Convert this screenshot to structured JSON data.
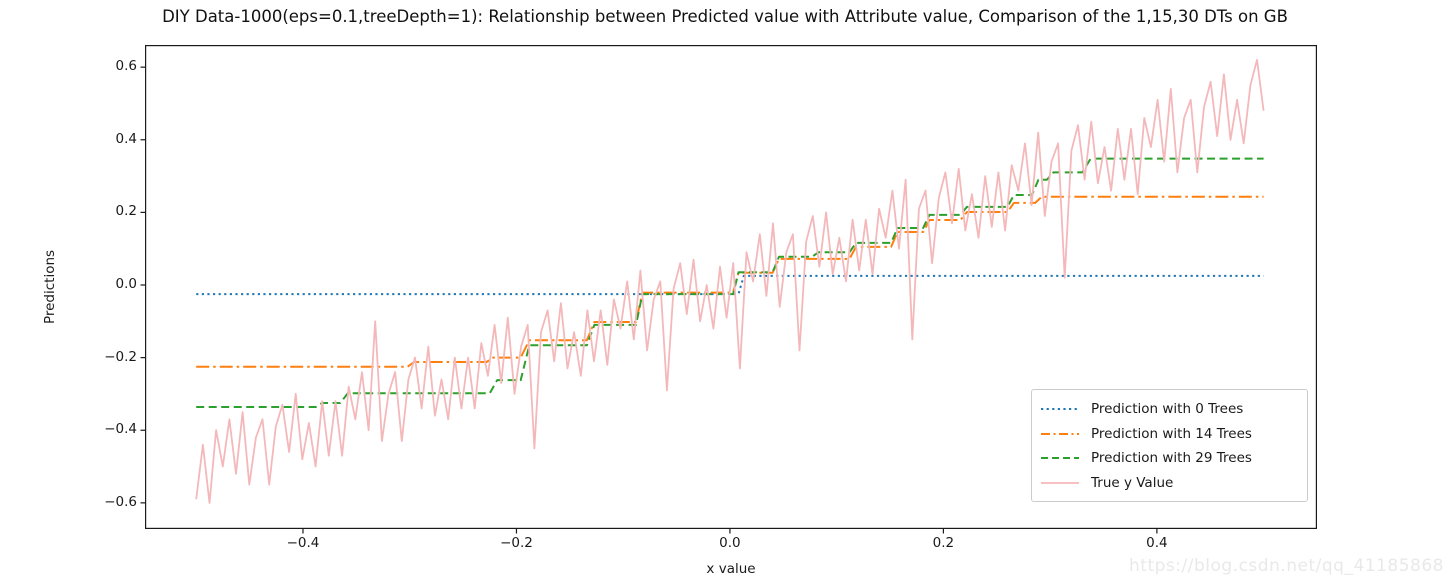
{
  "title": "DIY Data-1000(eps=0.1,treeDepth=1): Relationship between Predicted value with Attribute value, Comparison of the 1,15,30 DTs on GB",
  "watermark": "https://blog.csdn.net/qq_41185868",
  "chart_data": {
    "type": "line",
    "title": "DIY Data-1000(eps=0.1,treeDepth=1): Relationship between Predicted value with Attribute value, Comparison of the 1,15,30 DTs on GB",
    "xlabel": "x value",
    "ylabel": "Predictions",
    "xlim": [
      -0.548,
      0.55
    ],
    "ylim": [
      -0.672,
      0.661
    ],
    "grid": false,
    "legend_position": "inside-right-lower",
    "x_ticks": {
      "values": [
        -0.4,
        -0.2,
        0.0,
        0.2,
        0.4
      ],
      "labels": [
        "−0.4",
        "−0.2",
        "0.0",
        "0.2",
        "0.4"
      ]
    },
    "y_ticks": {
      "values": [
        0.6,
        0.4,
        0.2,
        0.0,
        -0.2,
        -0.4,
        -0.6
      ],
      "labels": [
        "0.6",
        "0.4",
        "0.2",
        "0.0",
        "−0.2",
        "−0.4",
        "−0.6"
      ]
    },
    "series": [
      {
        "name": "Prediction with 0 Trees",
        "color": "#1f77b4",
        "style": "dotted",
        "width": 2,
        "points": [
          [
            -0.5,
            -0.025
          ],
          [
            0.008,
            -0.025
          ],
          [
            0.013,
            0.025
          ],
          [
            0.5,
            0.025
          ]
        ]
      },
      {
        "name": "Prediction with 14 Trees",
        "color": "#ff7f0e",
        "style": "dashdot",
        "width": 2,
        "points": [
          [
            -0.5,
            -0.225
          ],
          [
            -0.302,
            -0.225
          ],
          [
            -0.296,
            -0.212
          ],
          [
            -0.228,
            -0.212
          ],
          [
            -0.222,
            -0.2
          ],
          [
            -0.196,
            -0.2
          ],
          [
            -0.188,
            -0.152
          ],
          [
            -0.134,
            -0.152
          ],
          [
            -0.127,
            -0.102
          ],
          [
            -0.088,
            -0.102
          ],
          [
            -0.082,
            -0.021
          ],
          [
            0.003,
            -0.021
          ],
          [
            0.008,
            0.034
          ],
          [
            0.04,
            0.034
          ],
          [
            0.046,
            0.072
          ],
          [
            0.112,
            0.072
          ],
          [
            0.118,
            0.105
          ],
          [
            0.151,
            0.105
          ],
          [
            0.157,
            0.146
          ],
          [
            0.181,
            0.146
          ],
          [
            0.187,
            0.179
          ],
          [
            0.216,
            0.179
          ],
          [
            0.222,
            0.201
          ],
          [
            0.26,
            0.201
          ],
          [
            0.266,
            0.226
          ],
          [
            0.286,
            0.226
          ],
          [
            0.292,
            0.243
          ],
          [
            0.5,
            0.243
          ]
        ]
      },
      {
        "name": "Prediction with 29 Trees",
        "color": "#2ca02c",
        "style": "dashed",
        "width": 2,
        "points": [
          [
            -0.5,
            -0.336
          ],
          [
            -0.388,
            -0.336
          ],
          [
            -0.382,
            -0.325
          ],
          [
            -0.365,
            -0.325
          ],
          [
            -0.358,
            -0.298
          ],
          [
            -0.225,
            -0.298
          ],
          [
            -0.218,
            -0.262
          ],
          [
            -0.196,
            -0.262
          ],
          [
            -0.188,
            -0.166
          ],
          [
            -0.134,
            -0.166
          ],
          [
            -0.127,
            -0.11
          ],
          [
            -0.088,
            -0.11
          ],
          [
            -0.082,
            -0.025
          ],
          [
            0.003,
            -0.025
          ],
          [
            0.008,
            0.035
          ],
          [
            0.04,
            0.035
          ],
          [
            0.046,
            0.078
          ],
          [
            0.077,
            0.078
          ],
          [
            0.083,
            0.09
          ],
          [
            0.112,
            0.09
          ],
          [
            0.118,
            0.116
          ],
          [
            0.151,
            0.116
          ],
          [
            0.157,
            0.157
          ],
          [
            0.181,
            0.157
          ],
          [
            0.187,
            0.193
          ],
          [
            0.216,
            0.193
          ],
          [
            0.222,
            0.215
          ],
          [
            0.26,
            0.215
          ],
          [
            0.266,
            0.248
          ],
          [
            0.283,
            0.248
          ],
          [
            0.289,
            0.29
          ],
          [
            0.297,
            0.29
          ],
          [
            0.303,
            0.31
          ],
          [
            0.33,
            0.31
          ],
          [
            0.338,
            0.348
          ],
          [
            0.5,
            0.348
          ]
        ]
      },
      {
        "name": "True y Value",
        "color": "#f4b8ba",
        "style": "solid",
        "width": 1.8,
        "x_start": -0.5,
        "x_end": 0.5,
        "y": [
          -0.59,
          -0.44,
          -0.6,
          -0.4,
          -0.5,
          -0.37,
          -0.52,
          -0.35,
          -0.55,
          -0.42,
          -0.37,
          -0.55,
          -0.39,
          -0.33,
          -0.46,
          -0.3,
          -0.48,
          -0.38,
          -0.5,
          -0.32,
          -0.47,
          -0.32,
          -0.47,
          -0.28,
          -0.37,
          -0.24,
          -0.4,
          -0.1,
          -0.43,
          -0.3,
          -0.24,
          -0.43,
          -0.26,
          -0.2,
          -0.34,
          -0.17,
          -0.36,
          -0.26,
          -0.37,
          -0.2,
          -0.34,
          -0.2,
          -0.34,
          -0.16,
          -0.25,
          -0.11,
          -0.27,
          -0.09,
          -0.3,
          -0.17,
          -0.11,
          -0.45,
          -0.13,
          -0.07,
          -0.21,
          -0.05,
          -0.23,
          -0.13,
          -0.25,
          -0.07,
          -0.21,
          -0.07,
          -0.22,
          -0.04,
          -0.12,
          0.01,
          -0.15,
          0.04,
          -0.18,
          -0.04,
          0.01,
          -0.29,
          -0.01,
          0.06,
          -0.08,
          0.07,
          -0.1,
          0.0,
          -0.12,
          0.05,
          -0.09,
          0.06,
          -0.23,
          0.09,
          0.01,
          0.14,
          -0.03,
          0.17,
          -0.06,
          0.09,
          0.14,
          -0.18,
          0.12,
          0.19,
          0.05,
          0.2,
          0.03,
          0.13,
          0.01,
          0.18,
          0.04,
          0.18,
          0.03,
          0.21,
          0.13,
          0.26,
          0.1,
          0.29,
          -0.15,
          0.21,
          0.26,
          0.06,
          0.24,
          0.31,
          0.17,
          0.32,
          0.15,
          0.25,
          0.13,
          0.3,
          0.16,
          0.31,
          0.15,
          0.33,
          0.26,
          0.39,
          0.22,
          0.42,
          0.19,
          0.34,
          0.39,
          0.02,
          0.37,
          0.44,
          0.29,
          0.45,
          0.28,
          0.38,
          0.26,
          0.43,
          0.29,
          0.43,
          0.25,
          0.46,
          0.38,
          0.51,
          0.34,
          0.54,
          0.31,
          0.46,
          0.51,
          0.31,
          0.49,
          0.56,
          0.41,
          0.58,
          0.4,
          0.51,
          0.39,
          0.55,
          0.62,
          0.48
        ]
      }
    ]
  }
}
